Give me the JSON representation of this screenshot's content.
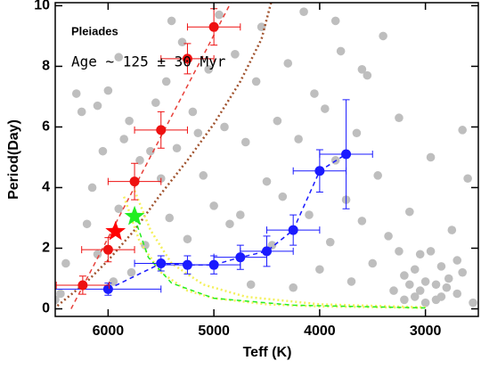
{
  "chart_data": {
    "type": "scatter",
    "annotations": [
      "Pleiades",
      "Age ~ 125 ± 30 Myr"
    ],
    "x_label": "Teff (K)",
    "y_label": "Period(Day)",
    "xlim": [
      6500,
      2500
    ],
    "ylim": [
      -0.25,
      10.1
    ],
    "xticks": [
      6000,
      5000,
      4000,
      3000
    ],
    "yticks": [
      0,
      2,
      4,
      6,
      8,
      10
    ],
    "series": [
      {
        "marker": "circle",
        "color": "#bebebe",
        "x": [
          6500,
          6450,
          6400,
          6300,
          6250,
          6200,
          6150,
          6100,
          6050,
          6000,
          5950,
          5900,
          5850,
          5800,
          5780,
          5700,
          5650,
          5600,
          5550,
          5500,
          5450,
          5420,
          5400,
          5350,
          5300,
          5250,
          5200,
          5150,
          5100,
          5050,
          5000,
          4950,
          4900,
          4850,
          4800,
          4750,
          4700,
          4650,
          4600,
          4550,
          4500,
          4450,
          4400,
          4350,
          4300,
          4250,
          4200,
          4150,
          4100,
          4050,
          4000,
          3950,
          3900,
          3850,
          3800,
          3750,
          3700,
          3650,
          3600,
          3550,
          3500,
          3450,
          3400,
          3350,
          3300,
          3250,
          3200,
          3150,
          3100,
          3050,
          3000,
          2950,
          2900,
          2850,
          2800,
          2750,
          2700,
          2650,
          2600,
          2550,
          3200,
          3100,
          3000,
          2900,
          2950,
          3050,
          2850,
          2780,
          3150,
          3250,
          2700,
          2650,
          3600,
          3850,
          6100,
          5900
        ],
        "values": [
          0.3,
          0.5,
          1.5,
          7.1,
          6.5,
          2.8,
          4.0,
          1.8,
          5.2,
          7.2,
          0.9,
          3.3,
          5.6,
          6.2,
          1.2,
          4.9,
          2.1,
          5.2,
          6.8,
          4.3,
          7.5,
          3.0,
          9.5,
          5.3,
          8.8,
          2.3,
          6.5,
          5.8,
          4.4,
          7.9,
          3.4,
          9.7,
          6.0,
          2.8,
          8.4,
          3.1,
          5.5,
          0.8,
          7.5,
          9.3,
          4.2,
          2.1,
          6.2,
          3.7,
          8.1,
          0.7,
          5.6,
          9.8,
          3.1,
          7.1,
          1.3,
          6.6,
          2.2,
          4.9,
          8.5,
          3.6,
          0.9,
          5.8,
          2.9,
          7.7,
          1.5,
          4.4,
          9.0,
          2.4,
          0.6,
          6.3,
          1.1,
          3.2,
          0.4,
          1.8,
          0.9,
          5.0,
          0.3,
          1.4,
          0.7,
          2.6,
          0.5,
          1.2,
          4.3,
          0.2,
          0.3,
          1.3,
          0.2,
          0.8,
          1.9,
          0.6,
          0.4,
          1.0,
          0.8,
          1.9,
          1.6,
          5.9,
          7.9,
          9.5,
          6.7,
          8.3
        ]
      },
      {
        "line": "dashed",
        "color": "#e8403a",
        "x": [
          6350,
          4840
        ],
        "values": [
          0,
          10.1
        ]
      },
      {
        "line": "dotted",
        "color": "#a0522d",
        "x": [
          6480,
          6200,
          6000,
          5750,
          5500,
          5250,
          5000,
          4750,
          4550,
          4460
        ],
        "values": [
          0.1,
          0.9,
          1.6,
          2.6,
          3.8,
          4.9,
          6.1,
          7.5,
          8.9,
          10.1
        ]
      },
      {
        "line": "dotted",
        "color": "#f4f05a",
        "x": [
          5850,
          5700,
          5500,
          5250,
          5000,
          4500,
          4000,
          3000
        ],
        "values": [
          3.7,
          2.2,
          1.2,
          0.6,
          0.35,
          0.15,
          0.08,
          0.03
        ]
      },
      {
        "line": "dotted",
        "color": "#f4f05a",
        "x": [
          5750,
          5600,
          5400,
          5100,
          4700,
          4000,
          3000
        ],
        "values": [
          3.9,
          2.6,
          1.5,
          0.8,
          0.4,
          0.15,
          0.05
        ]
      },
      {
        "line": "dashed",
        "color": "#22ee22",
        "x": [
          5750,
          5620,
          5400,
          5000,
          4250,
          3000
        ],
        "values": [
          3.0,
          1.7,
          0.85,
          0.35,
          0.12,
          0.03
        ]
      },
      {
        "line": "dashed",
        "marker": "circle",
        "color": "#1a1aff",
        "x": [
          6000,
          5500,
          5250,
          5000,
          4750,
          4500,
          4250,
          4000,
          3750
        ],
        "values": [
          0.65,
          1.5,
          1.45,
          1.45,
          1.7,
          1.9,
          2.6,
          4.55,
          5.1
        ],
        "xerr": [
          500,
          250,
          250,
          250,
          250,
          250,
          250,
          250,
          250
        ],
        "yerr": [
          0.2,
          0.25,
          0.3,
          0.3,
          0.4,
          0.5,
          0.5,
          0.7,
          1.8
        ]
      },
      {
        "marker": "circle",
        "color": "#ee1111",
        "x": [
          6240,
          6000,
          5750,
          5500,
          5250,
          5000
        ],
        "values": [
          0.78,
          1.95,
          4.2,
          5.9,
          8.25,
          9.3
        ],
        "xerr": [
          250,
          250,
          250,
          250,
          250,
          250
        ],
        "yerr": [
          0.3,
          0.4,
          0.6,
          0.6,
          0.5,
          0.6
        ]
      },
      {
        "marker": "star",
        "color": "#ff0000",
        "x": [
          5930
        ],
        "values": [
          2.55
        ]
      },
      {
        "marker": "star",
        "color": "#22ee22",
        "x": [
          5750
        ],
        "values": [
          3.05
        ]
      }
    ]
  }
}
